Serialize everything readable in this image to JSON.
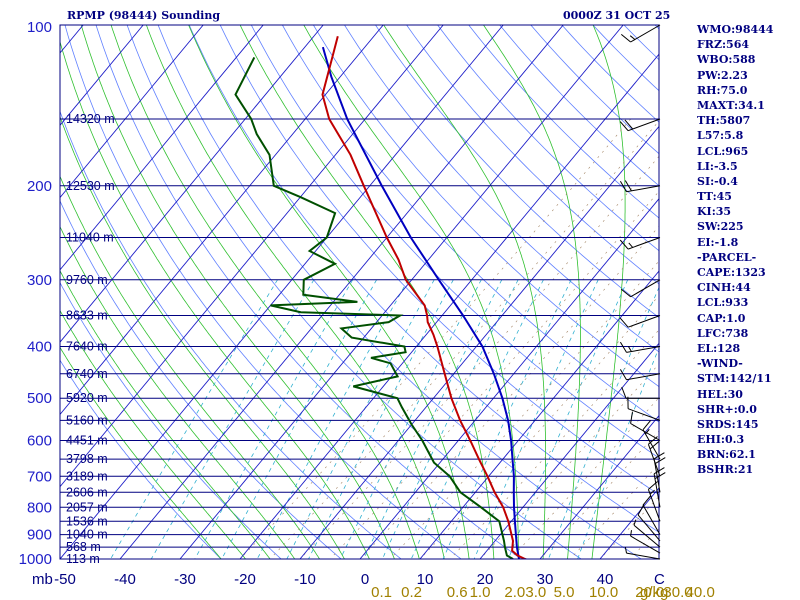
{
  "header": {
    "title": "RPMP (98444) Sounding",
    "datetime": "0000Z 31 OCT 25"
  },
  "indices": [
    "WMO:98444",
    "FRZ:564",
    "WBO:588",
    "PW:2.23",
    "RH:75.0",
    "MAXT:34.1",
    "TH:5807",
    "L57:5.8",
    "LCL:965",
    "LI:-3.5",
    "SI:-0.4",
    "TT:45",
    "KI:35",
    "SW:225",
    "EI:-1.8",
    "-PARCEL-",
    "CAPE:1323",
    "CINH:44",
    "LCL:933",
    "CAP:1.0",
    "LFC:738",
    "EL:128",
    "-WIND-",
    "STM:142/11",
    "HEL:30",
    "SHR+:0.0",
    "SRDS:145",
    "EHI:0.3",
    "BRN:62.1",
    "BSHR:21"
  ],
  "colors": {
    "isobar": "#000080",
    "isotherm": "#1e1ec8",
    "dry_adiabat": "#6080ff",
    "moist_adiabat": "#30c030",
    "mixing_ratio": "#30b0d0",
    "temperature": "#c00000",
    "dewpoint": "#005000",
    "parcel": "#0000c0",
    "mixing_label": "#a08000",
    "barb": "#000000"
  },
  "chart_data": {
    "type": "skew-t",
    "ylabel": "mb",
    "xlabel": "C",
    "mixing_unit": "g/kg",
    "pressure_ticks": [
      100,
      200,
      300,
      400,
      500,
      600,
      700,
      800,
      900,
      1000
    ],
    "temperature_ticks": [
      -50,
      -40,
      -30,
      -20,
      -10,
      0,
      10,
      20,
      30,
      40
    ],
    "heights": [
      {
        "p": 150,
        "label": "14320 m"
      },
      {
        "p": 200,
        "label": "12530 m"
      },
      {
        "p": 250,
        "label": "11040 m"
      },
      {
        "p": 300,
        "label": "9760 m"
      },
      {
        "p": 350,
        "label": "8633 m"
      },
      {
        "p": 400,
        "label": "7640 m"
      },
      {
        "p": 450,
        "label": "6740 m"
      },
      {
        "p": 500,
        "label": "5920 m"
      },
      {
        "p": 550,
        "label": "5160 m"
      },
      {
        "p": 600,
        "label": "4451 m"
      },
      {
        "p": 650,
        "label": "3798 m"
      },
      {
        "p": 700,
        "label": "3189 m"
      },
      {
        "p": 750,
        "label": "2606 m"
      },
      {
        "p": 800,
        "label": "2057 m"
      },
      {
        "p": 850,
        "label": "1536 m"
      },
      {
        "p": 900,
        "label": "1040 m"
      },
      {
        "p": 950,
        "label": "568 m"
      },
      {
        "p": 1000,
        "label": "113 m"
      }
    ],
    "mixing_ratio_labels": [
      {
        "value": "0.1",
        "t": 3.6
      },
      {
        "value": "0.2",
        "t": 8.6
      },
      {
        "value": "0.6",
        "t": 16.2
      },
      {
        "value": "1.0",
        "t": 20.0
      },
      {
        "value": "2.0",
        "t": 25.8
      },
      {
        "value": "3.0",
        "t": 29.3
      },
      {
        "value": "5.0",
        "t": 34.0
      },
      {
        "value": "10.0",
        "t": 40.6
      },
      {
        "value": "20.0",
        "t": 48.3
      },
      {
        "value": "30.0",
        "t": 53.0
      },
      {
        "value": "40.0",
        "t": 56.7
      }
    ],
    "temperature": [
      {
        "p": 1010,
        "t": 29.0
      },
      {
        "p": 1000,
        "t": 27.5
      },
      {
        "p": 985,
        "t": 25.8
      },
      {
        "p": 965,
        "t": 24.2
      },
      {
        "p": 925,
        "t": 23.0
      },
      {
        "p": 850,
        "t": 19.5
      },
      {
        "p": 800,
        "t": 16.7
      },
      {
        "p": 750,
        "t": 13.2
      },
      {
        "p": 700,
        "t": 9.8
      },
      {
        "p": 650,
        "t": 6.0
      },
      {
        "p": 600,
        "t": 2.0
      },
      {
        "p": 550,
        "t": -2.5
      },
      {
        "p": 500,
        "t": -7.0
      },
      {
        "p": 450,
        "t": -11.5
      },
      {
        "p": 400,
        "t": -16.5
      },
      {
        "p": 380,
        "t": -18.8
      },
      {
        "p": 360,
        "t": -21.5
      },
      {
        "p": 350,
        "t": -22.5
      },
      {
        "p": 335,
        "t": -24.3
      },
      {
        "p": 300,
        "t": -31.0
      },
      {
        "p": 275,
        "t": -35.0
      },
      {
        "p": 250,
        "t": -40.0
      },
      {
        "p": 200,
        "t": -51.0
      },
      {
        "p": 175,
        "t": -57.5
      },
      {
        "p": 150,
        "t": -66.0
      },
      {
        "p": 135,
        "t": -70.5
      },
      {
        "p": 115,
        "t": -74.0
      },
      {
        "p": 105,
        "t": -76.0
      }
    ],
    "dewpoint": [
      {
        "p": 1000,
        "t": 25.5
      },
      {
        "p": 985,
        "t": 24.0
      },
      {
        "p": 950,
        "t": 22.5
      },
      {
        "p": 925,
        "t": 21.5
      },
      {
        "p": 850,
        "t": 18.0
      },
      {
        "p": 800,
        "t": 13.0
      },
      {
        "p": 750,
        "t": 7.5
      },
      {
        "p": 700,
        "t": 3.5
      },
      {
        "p": 660,
        "t": -1.0
      },
      {
        "p": 600,
        "t": -6.0
      },
      {
        "p": 560,
        "t": -10.0
      },
      {
        "p": 520,
        "t": -14.0
      },
      {
        "p": 500,
        "t": -16.0
      },
      {
        "p": 475,
        "t": -25.0
      },
      {
        "p": 455,
        "t": -19.0
      },
      {
        "p": 430,
        "t": -22.0
      },
      {
        "p": 420,
        "t": -26.0
      },
      {
        "p": 410,
        "t": -21.0
      },
      {
        "p": 400,
        "t": -22.0
      },
      {
        "p": 385,
        "t": -32.0
      },
      {
        "p": 370,
        "t": -35.0
      },
      {
        "p": 360,
        "t": -28.0
      },
      {
        "p": 350,
        "t": -27.0
      },
      {
        "p": 345,
        "t": -44.0
      },
      {
        "p": 335,
        "t": -50.0
      },
      {
        "p": 330,
        "t": -36.0
      },
      {
        "p": 320,
        "t": -46.0
      },
      {
        "p": 300,
        "t": -48.0
      },
      {
        "p": 280,
        "t": -45.0
      },
      {
        "p": 265,
        "t": -51.0
      },
      {
        "p": 250,
        "t": -50.0
      },
      {
        "p": 225,
        "t": -52.0
      },
      {
        "p": 210,
        "t": -60.0
      },
      {
        "p": 200,
        "t": -66.0
      },
      {
        "p": 175,
        "t": -71.0
      },
      {
        "p": 160,
        "t": -76.0
      },
      {
        "p": 150,
        "t": -79.0
      },
      {
        "p": 135,
        "t": -85.0
      },
      {
        "p": 115,
        "t": -87.0
      }
    ],
    "parcel": [
      {
        "p": 1000,
        "t": 26.5
      },
      {
        "p": 950,
        "t": 24.5
      },
      {
        "p": 900,
        "t": 22.6
      },
      {
        "p": 850,
        "t": 20.6
      },
      {
        "p": 800,
        "t": 18.5
      },
      {
        "p": 750,
        "t": 16.4
      },
      {
        "p": 700,
        "t": 14.2
      },
      {
        "p": 650,
        "t": 11.6
      },
      {
        "p": 600,
        "t": 8.8
      },
      {
        "p": 550,
        "t": 5.5
      },
      {
        "p": 500,
        "t": 1.5
      },
      {
        "p": 450,
        "t": -3.3
      },
      {
        "p": 400,
        "t": -9.0
      },
      {
        "p": 350,
        "t": -16.5
      },
      {
        "p": 300,
        "t": -25.5
      },
      {
        "p": 250,
        "t": -36.0
      },
      {
        "p": 200,
        "t": -48.0
      },
      {
        "p": 150,
        "t": -63.0
      },
      {
        "p": 125,
        "t": -71.5
      },
      {
        "p": 110,
        "t": -77.0
      }
    ],
    "winds": [
      {
        "p": 100,
        "dir": 60,
        "spd": 15
      },
      {
        "p": 150,
        "dir": 70,
        "spd": 20
      },
      {
        "p": 200,
        "dir": 80,
        "spd": 20
      },
      {
        "p": 250,
        "dir": 70,
        "spd": 15
      },
      {
        "p": 300,
        "dir": 60,
        "spd": 10
      },
      {
        "p": 350,
        "dir": 70,
        "spd": 10
      },
      {
        "p": 400,
        "dir": 80,
        "spd": 15
      },
      {
        "p": 450,
        "dir": 80,
        "spd": 10
      },
      {
        "p": 500,
        "dir": 90,
        "spd": 10
      },
      {
        "p": 550,
        "dir": 110,
        "spd": 10
      },
      {
        "p": 600,
        "dir": 120,
        "spd": 10
      },
      {
        "p": 650,
        "dir": 150,
        "spd": 15
      },
      {
        "p": 700,
        "dir": 160,
        "spd": 20
      },
      {
        "p": 750,
        "dir": 170,
        "spd": 20
      },
      {
        "p": 800,
        "dir": 170,
        "spd": 20
      },
      {
        "p": 850,
        "dir": 160,
        "spd": 15
      },
      {
        "p": 900,
        "dir": 150,
        "spd": 10
      },
      {
        "p": 925,
        "dir": 140,
        "spd": 10
      },
      {
        "p": 950,
        "dir": 130,
        "spd": 5
      },
      {
        "p": 975,
        "dir": 120,
        "spd": 5
      },
      {
        "p": 1000,
        "dir": 100,
        "spd": 5
      }
    ]
  }
}
